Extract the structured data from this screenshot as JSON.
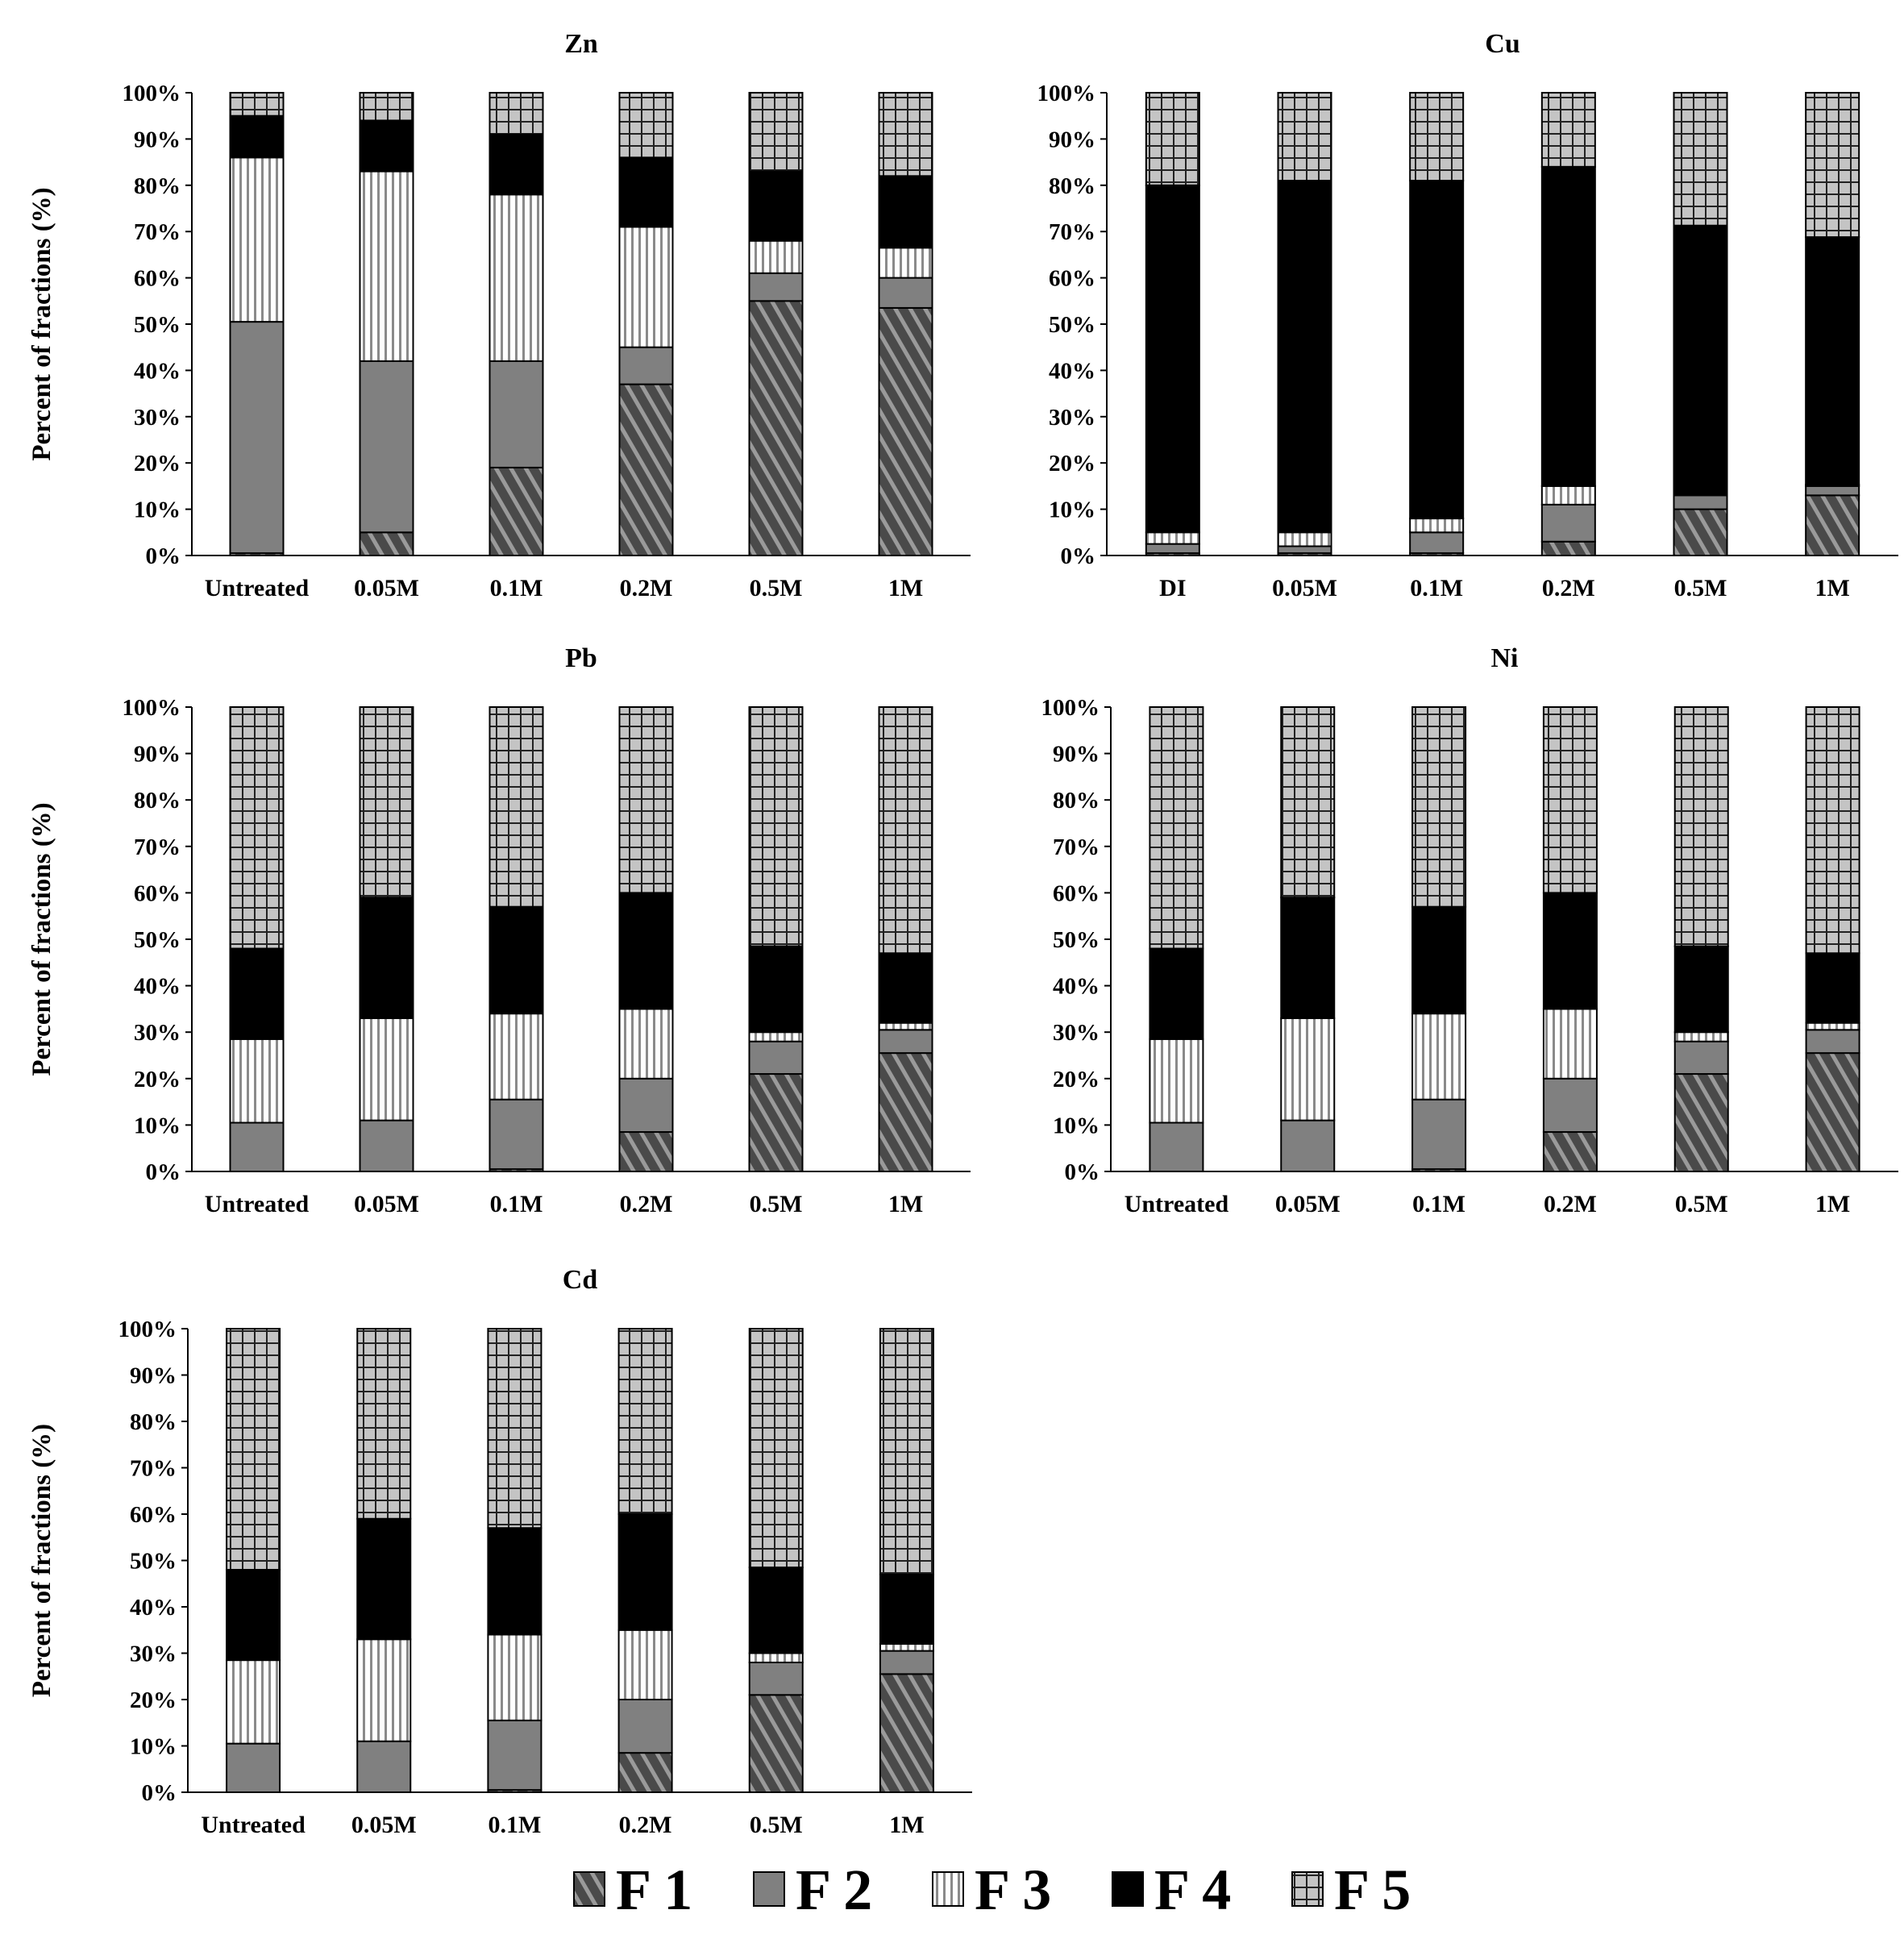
{
  "chart_data": {
    "type": "bar",
    "stacked": true,
    "percent": true,
    "ylabel": "Percent of fractions (%)",
    "ylim": [
      0,
      100
    ],
    "yticks": [
      "0%",
      "10%",
      "20%",
      "30%",
      "40%",
      "50%",
      "60%",
      "70%",
      "80%",
      "90%",
      "100%"
    ],
    "legend": {
      "placement": "bottom-center",
      "entries": [
        "F 1",
        "F 2",
        "F 3",
        "F 4",
        "F 5"
      ]
    },
    "colors": {
      "F1": "#555555",
      "F2": "#808080",
      "F3": "#ffffff",
      "F4": "#000000",
      "F5": "#c4c4c4"
    },
    "panels": [
      {
        "title": "Zn",
        "categories": [
          "Untreated",
          "0.05M",
          "0.1M",
          "0.2M",
          "0.5M",
          "1M"
        ],
        "series": [
          {
            "name": "F 1",
            "values": [
              0.5,
              5,
              19,
              37,
              55,
              53.5
            ]
          },
          {
            "name": "F 2",
            "values": [
              50,
              37,
              23,
              8,
              6,
              6.5
            ]
          },
          {
            "name": "F 3",
            "values": [
              35.5,
              41,
              36,
              26,
              7,
              6.5
            ]
          },
          {
            "name": "F 4",
            "values": [
              9,
              11,
              13,
              15,
              15,
              15.5
            ]
          },
          {
            "name": "F 5",
            "values": [
              5,
              6,
              9,
              14,
              17,
              18
            ]
          }
        ]
      },
      {
        "title": "Cu",
        "categories": [
          "DI",
          "0.05M",
          "0.1M",
          "0.2M",
          "0.5M",
          "1M"
        ],
        "series": [
          {
            "name": "F 1",
            "values": [
              0.5,
              0.5,
              0.5,
              3,
              10,
              13
            ]
          },
          {
            "name": "F 2",
            "values": [
              2,
              1.5,
              4.5,
              8,
              3,
              2
            ]
          },
          {
            "name": "F 3",
            "values": [
              2.5,
              3,
              3,
              4,
              0.3,
              0.3
            ]
          },
          {
            "name": "F 4",
            "values": [
              75,
              76,
              73,
              69,
              58,
              53.5
            ]
          },
          {
            "name": "F 5",
            "values": [
              20,
              19,
              19,
              16,
              28.7,
              31.2
            ]
          }
        ]
      },
      {
        "title": "Pb",
        "categories": [
          "Untreated",
          "0.05M",
          "0.1M",
          "0.2M",
          "0.5M",
          "1M"
        ],
        "series": [
          {
            "name": "F 1",
            "values": [
              0,
              0,
              0.5,
              8.5,
              21,
              25.5
            ]
          },
          {
            "name": "F 2",
            "values": [
              10.5,
              11,
              15,
              11.5,
              7,
              5
            ]
          },
          {
            "name": "F 3",
            "values": [
              18,
              22,
              18.5,
              15,
              2,
              1.5
            ]
          },
          {
            "name": "F 4",
            "values": [
              19.5,
              26,
              23,
              25,
              18.5,
              15
            ]
          },
          {
            "name": "F 5",
            "values": [
              52,
              41,
              43,
              40,
              51.5,
              53
            ]
          }
        ]
      },
      {
        "title": "Ni",
        "categories": [
          "Untreated",
          "0.05M",
          "0.1M",
          "0.2M",
          "0.5M",
          "1M"
        ],
        "series": [
          {
            "name": "F 1",
            "values": [
              0,
              0,
              0.5,
              8.5,
              21,
              25.5
            ]
          },
          {
            "name": "F 2",
            "values": [
              10.5,
              11,
              15,
              11.5,
              7,
              5
            ]
          },
          {
            "name": "F 3",
            "values": [
              18,
              22,
              18.5,
              15,
              2,
              1.5
            ]
          },
          {
            "name": "F 4",
            "values": [
              19.5,
              26,
              23,
              25,
              18.5,
              15
            ]
          },
          {
            "name": "F 5",
            "values": [
              52,
              41,
              43,
              40,
              51.5,
              53
            ]
          }
        ]
      },
      {
        "title": "Cd",
        "categories": [
          "Untreated",
          "0.05M",
          "0.1M",
          "0.2M",
          "0.5M",
          "1M"
        ],
        "series": [
          {
            "name": "F 1",
            "values": [
              0,
              0,
              0.5,
              8.5,
              21,
              25.5
            ]
          },
          {
            "name": "F 2",
            "values": [
              10.5,
              11,
              15,
              11.5,
              7,
              5
            ]
          },
          {
            "name": "F 3",
            "values": [
              18,
              22,
              18.5,
              15,
              2,
              1.5
            ]
          },
          {
            "name": "F 4",
            "values": [
              19.5,
              26,
              23,
              25,
              18.5,
              15
            ]
          },
          {
            "name": "F 5",
            "values": [
              52,
              41,
              43,
              40,
              51.5,
              53
            ]
          }
        ]
      }
    ]
  }
}
